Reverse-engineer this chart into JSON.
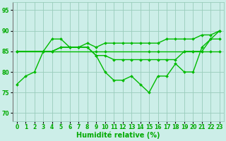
{
  "lines": [
    {
      "x": [
        0,
        1,
        2,
        3,
        4,
        5,
        6,
        7,
        8,
        9,
        10,
        11,
        12,
        13,
        14,
        15,
        16,
        17,
        18,
        19,
        20,
        21,
        22,
        23
      ],
      "y": [
        77,
        79,
        80,
        85,
        88,
        88,
        86,
        86,
        86,
        84,
        80,
        78,
        78,
        79,
        77,
        75,
        79,
        79,
        82,
        80,
        80,
        86,
        88,
        90
      ]
    },
    {
      "x": [
        0,
        3,
        4,
        9,
        10,
        15,
        16,
        19,
        20,
        21,
        22,
        23
      ],
      "y": [
        85,
        85,
        85,
        85,
        85,
        85,
        85,
        85,
        85,
        85,
        85,
        85
      ]
    },
    {
      "x": [
        0,
        3,
        4,
        5,
        6,
        7,
        8,
        9,
        10,
        11,
        12,
        13,
        14,
        15,
        16,
        17,
        18,
        19,
        20,
        21,
        22,
        23
      ],
      "y": [
        85,
        85,
        85,
        86,
        86,
        86,
        87,
        86,
        87,
        87,
        87,
        87,
        87,
        87,
        87,
        88,
        88,
        88,
        88,
        89,
        89,
        90
      ]
    },
    {
      "x": [
        0,
        3,
        4,
        5,
        6,
        7,
        8,
        9,
        10,
        11,
        12,
        13,
        14,
        15,
        16,
        17,
        18,
        19,
        20,
        21,
        22,
        23
      ],
      "y": [
        85,
        85,
        85,
        86,
        86,
        86,
        86,
        84,
        84,
        83,
        83,
        83,
        83,
        83,
        83,
        83,
        83,
        85,
        85,
        85,
        88,
        88
      ]
    }
  ],
  "line_color": "#00bb00",
  "marker": "D",
  "marker_size": 2.0,
  "line_width": 1.0,
  "bg_color": "#cceee8",
  "grid_color": "#99ccbb",
  "xlabel": "Humidité relative (%)",
  "xlabel_color": "#00aa00",
  "xlabel_fontsize": 7,
  "tick_color": "#00aa00",
  "tick_fontsize": 5.5,
  "ylim": [
    68,
    97
  ],
  "xlim": [
    -0.5,
    23.5
  ],
  "yticks": [
    70,
    75,
    80,
    85,
    90,
    95
  ],
  "xticks": [
    0,
    1,
    2,
    3,
    4,
    5,
    6,
    7,
    8,
    9,
    10,
    11,
    12,
    13,
    14,
    15,
    16,
    17,
    18,
    19,
    20,
    21,
    22,
    23
  ]
}
